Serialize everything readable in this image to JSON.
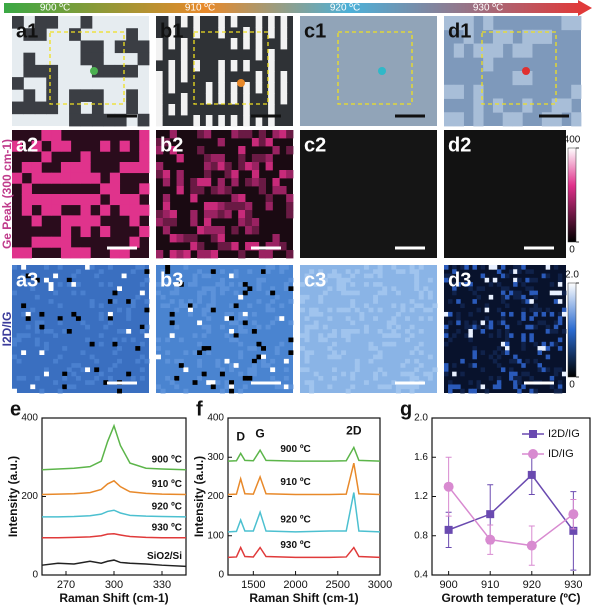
{
  "temperatures": [
    "900 ºC",
    "910 ºC",
    "920 ºC",
    "930 ºC"
  ],
  "panels": [
    [
      "a1",
      "b1",
      "c1",
      "d1"
    ],
    [
      "a2",
      "b2",
      "c2",
      "d2"
    ],
    [
      "a3",
      "b3",
      "c3",
      "d3"
    ]
  ],
  "maps": [
    {
      "label": "Ge Peak (300 cm-1)",
      "colorbar_lim": [
        0,
        400
      ],
      "colorbar_ticks": [
        0,
        400
      ]
    },
    {
      "label": "I2D/IG",
      "colorbar_lim": [
        0,
        2
      ],
      "colorbar_ticks": [
        0,
        {
          "value": 2,
          "label": "2.0"
        }
      ]
    }
  ],
  "chart_data": [
    {
      "type": "line",
      "title": "e",
      "xlabel": "Raman Shift (cm-1)",
      "ylabel": "Intensity (a.u.)",
      "x": [
        255,
        265,
        275,
        285,
        292,
        296,
        300,
        304,
        310,
        320,
        330,
        345
      ],
      "xlim": [
        255,
        345
      ],
      "xticks": [
        270,
        300,
        330
      ],
      "ylim": [
        0,
        400
      ],
      "yticks": [
        0,
        200,
        400
      ],
      "series": [
        {
          "name": "900 ºC",
          "color": "#5cb54a",
          "values": [
            268,
            270,
            272,
            276,
            290,
            340,
            380,
            330,
            285,
            272,
            270,
            268
          ]
        },
        {
          "name": "910 ºC",
          "color": "#e8892a",
          "values": [
            205,
            206,
            207,
            210,
            218,
            232,
            240,
            225,
            212,
            208,
            206,
            205
          ]
        },
        {
          "name": "920 ºC",
          "color": "#4cc0d0",
          "values": [
            148,
            148,
            149,
            151,
            155,
            162,
            165,
            158,
            152,
            150,
            149,
            148
          ]
        },
        {
          "name": "930 ºC",
          "color": "#e03a3a",
          "values": [
            95,
            95,
            96,
            97,
            100,
            104,
            105,
            102,
            98,
            96,
            95,
            95
          ]
        },
        {
          "name": "SiO2/Si",
          "color": "#222222",
          "values": [
            25,
            30,
            28,
            35,
            30,
            35,
            38,
            32,
            30,
            28,
            25,
            22
          ]
        }
      ]
    },
    {
      "type": "line",
      "title": "f",
      "xlabel": "Raman Shift (cm-1)",
      "ylabel": "Intensity (a.u.)",
      "annotations": [
        "D",
        "G",
        "2D"
      ],
      "x": [
        1200,
        1300,
        1350,
        1400,
        1500,
        1580,
        1650,
        2000,
        2400,
        2600,
        2690,
        2750,
        3000
      ],
      "xlim": [
        1200,
        3000
      ],
      "xticks": [
        1500,
        2000,
        2500,
        3000
      ],
      "ylim": [
        0,
        400
      ],
      "yticks": [
        0,
        100,
        200,
        300,
        400
      ],
      "series": [
        {
          "name": "900 ºC",
          "color": "#5cb54a",
          "values": [
            290,
            291,
            310,
            292,
            291,
            318,
            292,
            290,
            290,
            291,
            325,
            292,
            290
          ]
        },
        {
          "name": "910 ºC",
          "color": "#e8892a",
          "values": [
            205,
            206,
            245,
            207,
            206,
            250,
            207,
            205,
            205,
            206,
            285,
            207,
            205
          ]
        },
        {
          "name": "920 ºC",
          "color": "#4cc0d0",
          "values": [
            110,
            111,
            140,
            112,
            112,
            160,
            112,
            110,
            112,
            112,
            210,
            112,
            110
          ]
        },
        {
          "name": "930 ºC",
          "color": "#e03a3a",
          "values": [
            45,
            46,
            70,
            47,
            46,
            70,
            47,
            45,
            45,
            46,
            70,
            47,
            45
          ]
        }
      ]
    },
    {
      "type": "line",
      "title": "g",
      "xlabel": "Growth temperature (ºC)",
      "legend": "top-right",
      "x": [
        900,
        910,
        920,
        930
      ],
      "xlim": [
        896,
        934
      ],
      "xticks": [
        900,
        910,
        920,
        930
      ],
      "ylim": [
        0.4,
        2
      ],
      "yticks": [
        0.4,
        0.8,
        1.2,
        1.6,
        {
          "value": 2,
          "label": "2.0"
        }
      ],
      "series": [
        {
          "name": "I2D/IG",
          "color": "#6a4ab0",
          "marker": "square",
          "values": [
            0.86,
            1.02,
            1.42,
            0.85
          ],
          "errors": [
            0.18,
            0.3,
            0.2,
            0.4
          ]
        },
        {
          "name": "ID/IG",
          "color": "#d88ad0",
          "marker": "circle",
          "values": [
            1.3,
            0.76,
            0.7,
            1.02
          ],
          "errors": [
            0.3,
            0.15,
            0.2,
            0.15
          ]
        }
      ]
    }
  ]
}
